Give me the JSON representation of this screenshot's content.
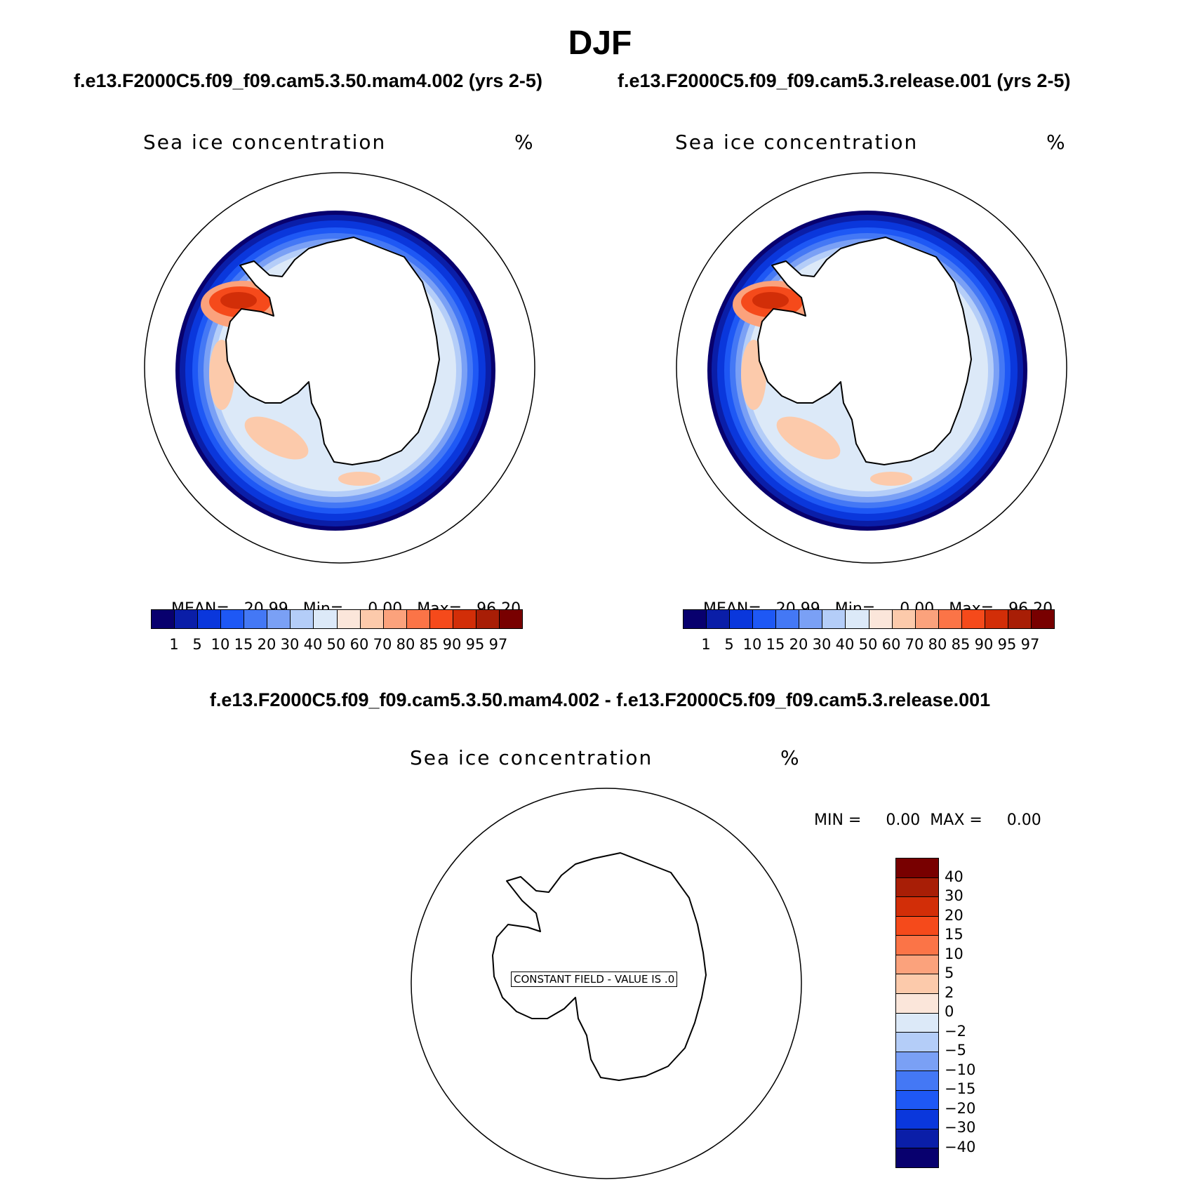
{
  "season": "DJF",
  "case1_title": "f.e13.F2000C5.f09_f09.cam5.3.50.mam4.002 (yrs 2-5)",
  "case2_title": "f.e13.F2000C5.f09_f09.cam5.3.release.001 (yrs 2-5)",
  "diff_title": "f.e13.F2000C5.f09_f09.cam5.3.50.mam4.002 - f.e13.F2000C5.f09_f09.cam5.3.release.001",
  "colors": {
    "concentration": [
      "#08006e",
      "#0a1ea8",
      "#0a37dc",
      "#1e58f5",
      "#4478f5",
      "#7aa0f5",
      "#b4cdf8",
      "#dce9f8",
      "#fbe6da",
      "#fccaab",
      "#fba27c",
      "#fb7447",
      "#f54a1b",
      "#d22e08",
      "#a81e06",
      "#780000"
    ],
    "difference": [
      "#780000",
      "#a81e06",
      "#d22e08",
      "#f54a1b",
      "#fb7447",
      "#fba27c",
      "#fccaab",
      "#fbe6da",
      "#dce9f8",
      "#b4cdf8",
      "#7aa0f5",
      "#4478f5",
      "#1e58f5",
      "#0a37dc",
      "#0a1ea8",
      "#08006e"
    ]
  },
  "panels": [
    {
      "variable": "Sea ice concentration",
      "units": "%",
      "stats": {
        "mean_label": "MEAN=",
        "mean": "20.99",
        "min_label": "Min=",
        "min": "0.00",
        "max_label": "Max=",
        "max": "96.20"
      },
      "colorbar_ticks": [
        "1",
        "5",
        "10",
        "15",
        "20",
        "30",
        "40",
        "50",
        "60",
        "70",
        "80",
        "85",
        "90",
        "95",
        "97"
      ]
    },
    {
      "variable": "Sea ice concentration",
      "units": "%",
      "stats": {
        "mean_label": "MEAN=",
        "mean": "20.99",
        "min_label": "Min=",
        "min": "0.00",
        "max_label": "Max=",
        "max": "96.20"
      },
      "colorbar_ticks": [
        "1",
        "5",
        "10",
        "15",
        "20",
        "30",
        "40",
        "50",
        "60",
        "70",
        "80",
        "85",
        "90",
        "95",
        "97"
      ]
    }
  ],
  "diff_panel": {
    "variable": "Sea ice concentration",
    "units": "%",
    "minmax": "MIN =     0.00  MAX =     0.00",
    "constant_note": "CONSTANT FIELD - VALUE IS .0",
    "colorbar_ticks": [
      "40",
      "30",
      "20",
      "15",
      "10",
      "5",
      "2",
      "0",
      "−2",
      "−5",
      "−10",
      "−15",
      "−20",
      "−30",
      "−40"
    ]
  },
  "chart_data": [
    {
      "type": "heatmap",
      "projection": "south polar stereographic",
      "title": "Sea ice concentration",
      "units": "%",
      "case": "f.e13.F2000C5.f09_f09.cam5.3.50.mam4.002 (yrs 2-5)",
      "levels": [
        1,
        5,
        10,
        15,
        20,
        30,
        40,
        50,
        60,
        70,
        80,
        85,
        90,
        95,
        97
      ],
      "mean": 20.99,
      "min": 0.0,
      "max": 96.2
    },
    {
      "type": "heatmap",
      "projection": "south polar stereographic",
      "title": "Sea ice concentration",
      "units": "%",
      "case": "f.e13.F2000C5.f09_f09.cam5.3.release.001 (yrs 2-5)",
      "levels": [
        1,
        5,
        10,
        15,
        20,
        30,
        40,
        50,
        60,
        70,
        80,
        85,
        90,
        95,
        97
      ],
      "mean": 20.99,
      "min": 0.0,
      "max": 96.2
    },
    {
      "type": "heatmap",
      "projection": "south polar stereographic",
      "title": "Sea ice concentration",
      "units": "%",
      "case": "difference",
      "levels": [
        -40,
        -30,
        -20,
        -15,
        -10,
        -5,
        -2,
        0,
        2,
        5,
        10,
        15,
        20,
        30,
        40
      ],
      "min": 0.0,
      "max": 0.0,
      "note": "CONSTANT FIELD - VALUE IS .0"
    }
  ]
}
